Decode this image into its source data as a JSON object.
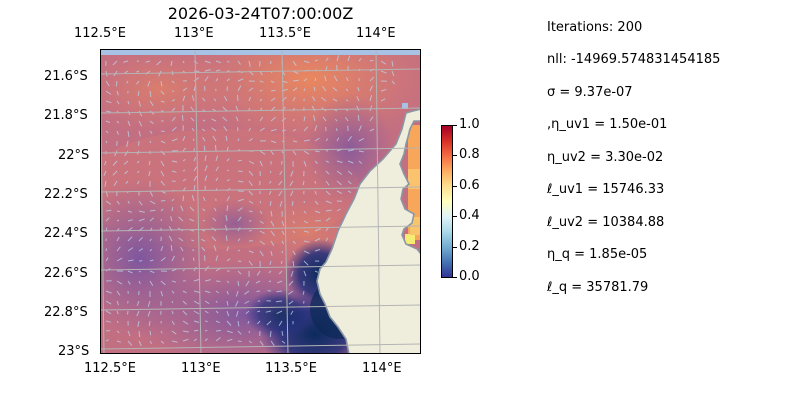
{
  "title": "2026-03-24T07:00:00Z",
  "map": {
    "lon_labels_top": [
      "112.5°E",
      "113°E",
      "113.5°E",
      "114°E"
    ],
    "lon_labels_bottom": [
      "112.5°E",
      "113°E",
      "113.5°E",
      "114°E"
    ],
    "lat_labels": [
      "21.6°S",
      "21.8°S",
      "22°S",
      "22.2°S",
      "22.4°S",
      "22.6°S",
      "22.8°S",
      "23°S"
    ],
    "colors": {
      "ocean": "#a7c2e5",
      "land": "#efeedd",
      "coast": "#8b97a5",
      "grid": "#b4b4b4",
      "arrows": "#bcd4ec"
    }
  },
  "colorbar": {
    "colormap": "RdYlBu_r",
    "min": 0.0,
    "max": 1.0,
    "ticks": [
      "1.0",
      "0.8",
      "0.6",
      "0.4",
      "0.2",
      "0.0"
    ]
  },
  "params": [
    "Iterations: 200",
    "nll: -14969.574831454185",
    "σ = 9.37e-07",
    ",η_uv1 = 1.50e-01",
    "η_uv2 = 3.30e-02",
    "ℓ_uv1 = 15746.33",
    "ℓ_uv2 = 10384.88",
    "η_q = 1.85e-05",
    "ℓ_q = 35781.79"
  ]
}
